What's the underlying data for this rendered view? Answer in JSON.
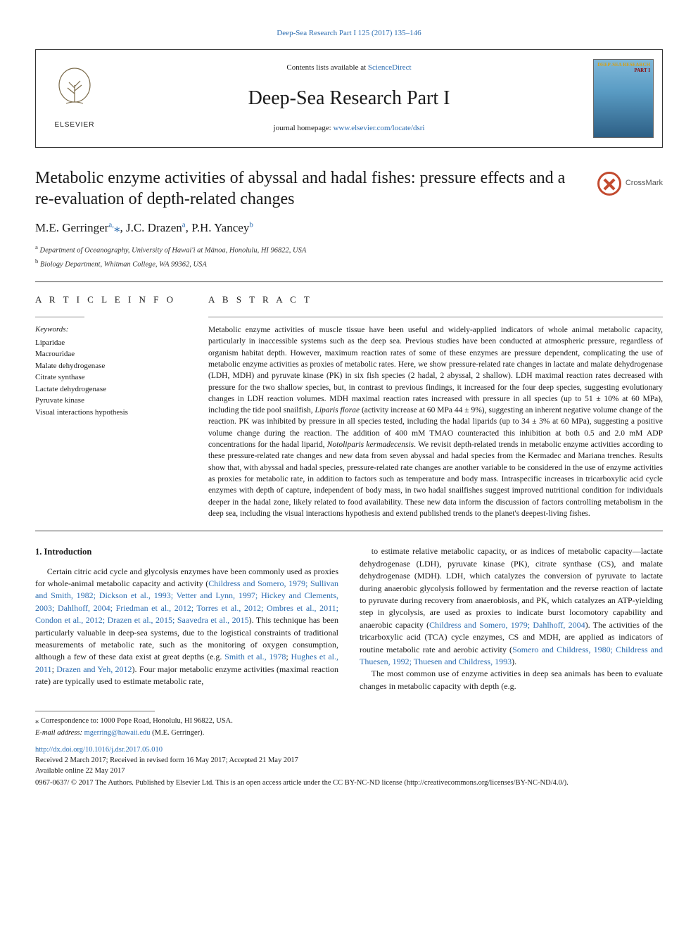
{
  "top_link": {
    "label": "Deep-Sea Research Part I 125 (2017) 135–146",
    "href": "#"
  },
  "header": {
    "contents_prefix": "Contents lists available at ",
    "contents_link": "ScienceDirect",
    "journal_name": "Deep-Sea Research Part I",
    "homepage_prefix": "journal homepage: ",
    "homepage_link": "www.elsevier.com/locate/dsri",
    "publisher": "ELSEVIER",
    "cover_title_1": "DEEP-SEA RESEARCH",
    "cover_title_2": "PART I"
  },
  "crossmark_label": "CrossMark",
  "article_title": "Metabolic enzyme activities of abyssal and hadal fishes: pressure effects and a re-evaluation of depth-related changes",
  "authors_html": "M.E. Gerringer<sup>a,</sup><span class='corr'>⁎</span>, J.C. Drazen<sup>a</sup>, P.H. Yancey<sup>b</sup>",
  "affiliations": [
    {
      "sup": "a",
      "text": "Department of Oceanography, University of Hawai'i at Mānoa, Honolulu, HI 96822, USA"
    },
    {
      "sup": "b",
      "text": "Biology Department, Whitman College, WA 99362, USA"
    }
  ],
  "info_head": "A R T I C L E  I N F O",
  "abs_head": "A B S T R A C T",
  "keywords_label": "Keywords:",
  "keywords": [
    "Liparidae",
    "Macrouridae",
    "Malate dehydrogenase",
    "Citrate synthase",
    "Lactate dehydrogenase",
    "Pyruvate kinase",
    "Visual interactions hypothesis"
  ],
  "abstract_html": "Metabolic enzyme activities of muscle tissue have been useful and widely-applied indicators of whole animal metabolic capacity, particularly in inaccessible systems such as the deep sea. Previous studies have been conducted at atmospheric pressure, regardless of organism habitat depth. However, maximum reaction rates of some of these enzymes are pressure dependent, complicating the use of metabolic enzyme activities as proxies of metabolic rates. Here, we show pressure-related rate changes in lactate and malate dehydrogenase (LDH, MDH) and pyruvate kinase (PK) in six fish species (2 hadal, 2 abyssal, 2 shallow). LDH maximal reaction rates decreased with pressure for the two shallow species, but, in contrast to previous findings, it increased for the four deep species, suggesting evolutionary changes in LDH reaction volumes. MDH maximal reaction rates increased with pressure in all species (up to 51 ± 10% at 60 MPa), including the tide pool snailfish, <i>Liparis florae</i> (activity increase at 60 MPa 44 ± 9%), suggesting an inherent negative volume change of the reaction. PK was inhibited by pressure in all species tested, including the hadal liparids (up to 34 ± 3% at 60 MPa), suggesting a positive volume change during the reaction. The addition of 400 mM TMAO counteracted this inhibition at both 0.5 and 2.0 mM ADP concentrations for the hadal liparid, <i>Notoliparis kermadecensis</i>. We revisit depth-related trends in metabolic enzyme activities according to these pressure-related rate changes and new data from seven abyssal and hadal species from the Kermadec and Mariana trenches. Results show that, with abyssal and hadal species, pressure-related rate changes are another variable to be considered in the use of enzyme activities as proxies for metabolic rate, in addition to factors such as temperature and body mass. Intraspecific increases in tricarboxylic acid cycle enzymes with depth of capture, independent of body mass, in two hadal snailfishes suggest improved nutritional condition for individuals deeper in the hadal zone, likely related to food availability. These new data inform the discussion of factors controlling metabolism in the deep sea, including the visual interactions hypothesis and extend published trends to the planet's deepest-living fishes.",
  "section_head": "1. Introduction",
  "intro_para_1_html": "Certain citric acid cycle and glycolysis enzymes have been commonly used as proxies for whole-animal metabolic capacity and activity (<span class='cite'>Childress and Somero, 1979; Sullivan and Smith, 1982; Dickson et al., 1993; Vetter and Lynn, 1997; Hickey and Clements, 2003; Dahlhoff, 2004; Friedman et al., 2012; Torres et al., 2012; Ombres et al., 2011; Condon et al., 2012; Drazen et al., 2015; Saavedra et al., 2015</span>). This technique has been particularly valuable in deep-sea systems, due to the logistical constraints of traditional measurements of metabolic rate, such as the monitoring of oxygen consumption, although a few of these data exist at great depths (e.g. <span class='cite'>Smith et al., 1978</span>; <span class='cite'>Hughes et al., 2011</span>; <span class='cite'>Drazen and Yeh, 2012</span>). Four major metabolic enzyme activities (maximal reaction rate) are typically used to estimate metabolic rate,",
  "intro_para_2_html": "to estimate relative metabolic capacity, or as indices of metabolic capacity—lactate dehydrogenase (LDH), pyruvate kinase (PK), citrate synthase (CS), and malate dehydrogenase (MDH). LDH, which catalyzes the conversion of pyruvate to lactate during anaerobic glycolysis followed by fermentation and the reverse reaction of lactate to pyruvate during recovery from anaerobiosis, and PK, which catalyzes an ATP-yielding step in glycolysis, are used as proxies to indicate burst locomotory capability and anaerobic capacity (<span class='cite'>Childress and Somero, 1979; Dahlhoff, 2004</span>). The activities of the tricarboxylic acid (TCA) cycle enzymes, CS and MDH, are applied as indicators of routine metabolic rate and aerobic activity (<span class='cite'>Somero and Childress, 1980; Childress and Thuesen, 1992; Thuesen and Childress, 1993</span>).",
  "intro_para_3_html": "The most common use of enzyme activities in deep sea animals has been to evaluate changes in metabolic capacity with depth (e.g.",
  "footer": {
    "corr_line_prefix": "⁎ Correspondence to: ",
    "corr_line": "1000 Pope Road, Honolulu, HI 96822, USA.",
    "email_label": "E-mail address: ",
    "email": "mgerring@hawaii.edu",
    "email_suffix": " (M.E. Gerringer).",
    "doi": "http://dx.doi.org/10.1016/j.dsr.2017.05.010",
    "received": "Received 2 March 2017; Received in revised form 16 May 2017; Accepted 21 May 2017",
    "available": "Available online 22 May 2017",
    "copyright": "0967-0637/ © 2017 The Authors. Published by Elsevier Ltd. This is an open access article under the CC BY-NC-ND license (http://creativecommons.org/licenses/BY-NC-ND/4.0/)."
  },
  "colors": {
    "link": "#2b6cb0",
    "rule": "#444444",
    "crossmark": "#c24a2f",
    "cover_gold": "#d4a017",
    "cover_red": "#8b0000"
  }
}
